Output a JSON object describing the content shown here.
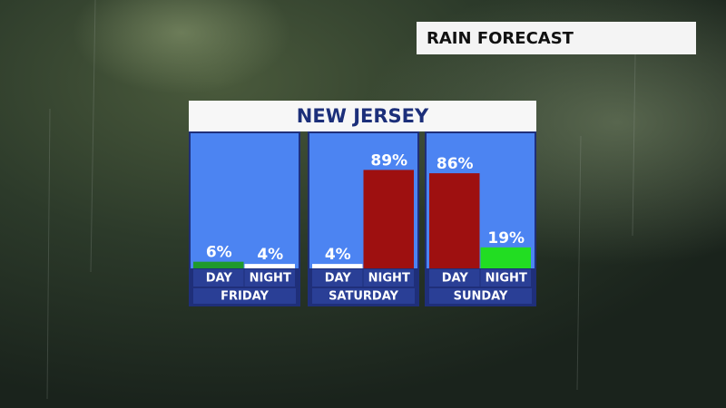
{
  "header": {
    "title": "RAIN FORECAST"
  },
  "chart_data": {
    "type": "bar",
    "title": "NEW JERSEY",
    "ylim": [
      0,
      100
    ],
    "groups": [
      {
        "name": "FRIDAY",
        "categories": [
          "DAY",
          "NIGHT"
        ],
        "values": [
          6,
          4
        ],
        "value_labels": [
          "6%",
          "4%"
        ],
        "colors": [
          "#1f9a2c",
          "#ffffff"
        ]
      },
      {
        "name": "SATURDAY",
        "categories": [
          "DAY",
          "NIGHT"
        ],
        "values": [
          4,
          89
        ],
        "value_labels": [
          "4%",
          "89%"
        ],
        "colors": [
          "#ffffff",
          "#9e1010"
        ]
      },
      {
        "name": "SUNDAY",
        "categories": [
          "DAY",
          "NIGHT"
        ],
        "values": [
          86,
          19
        ],
        "value_labels": [
          "86%",
          "19%"
        ],
        "colors": [
          "#9e1010",
          "#22dd22"
        ]
      }
    ]
  }
}
